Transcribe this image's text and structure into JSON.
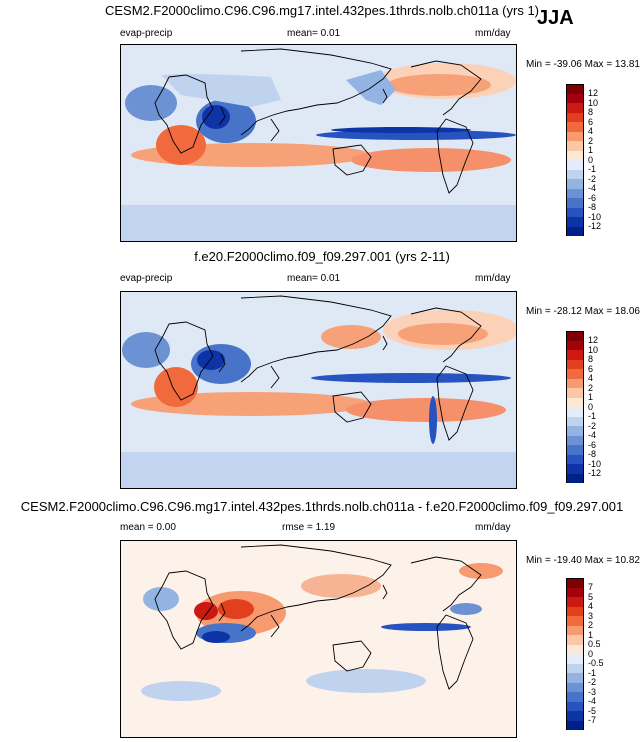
{
  "season": "JJA",
  "panels": [
    {
      "title": "CESM2.F2000climo.C96.C96.mg17.intel.432pes.1thrds.nolb.ch011a (yrs 1)",
      "variable": "evap-precip",
      "mean_label": "mean=",
      "mean_value": "0.01",
      "units": "mm/day",
      "minmax": "Min = -39.06 Max = 13.81",
      "colorbar_ticks": [
        "12",
        "10",
        "8",
        "6",
        "4",
        "2",
        "1",
        "0",
        "-1",
        "-2",
        "-4",
        "-6",
        "-8",
        "-10",
        "-12"
      ]
    },
    {
      "title": "f.e20.F2000climo.f09_f09.297.001 (yrs 2-11)",
      "variable": "evap-precip",
      "mean_label": "mean=",
      "mean_value": "0.01",
      "units": "mm/day",
      "minmax": "Min = -28.12 Max = 18.06",
      "colorbar_ticks": [
        "12",
        "10",
        "8",
        "6",
        "4",
        "2",
        "1",
        "0",
        "-1",
        "-2",
        "-4",
        "-6",
        "-8",
        "-10",
        "-12"
      ]
    },
    {
      "title": "CESM2.F2000climo.C96.C96.mg17.intel.432pes.1thrds.nolb.ch011a - f.e20.F2000climo.f09_f09.297.001",
      "mean_label": "mean =",
      "mean_value": "0.00",
      "rmse_label": "rmse =",
      "rmse_value": "1.19",
      "units": "mm/day",
      "minmax": "Min = -19.40 Max = 10.82",
      "colorbar_ticks": [
        "7",
        "5",
        "4",
        "3",
        "2",
        "1",
        "0.5",
        "0",
        "-0.5",
        "-1",
        "-2",
        "-3",
        "-4",
        "-5",
        "-7"
      ]
    }
  ],
  "colors": {
    "cbar_top": [
      "#7d0005",
      "#a5000e",
      "#cc1a13",
      "#e2401c",
      "#f06a3d",
      "#f79a70",
      "#fcc6a9",
      "#fde8d8"
    ],
    "cbar_bottom": [
      "#e3ecf8",
      "#bfd2ee",
      "#93b3e2",
      "#6c92d4",
      "#4774c9",
      "#2653bf",
      "#0e33a7",
      "#001f88"
    ],
    "ocean_base": "#dfe9f5"
  }
}
